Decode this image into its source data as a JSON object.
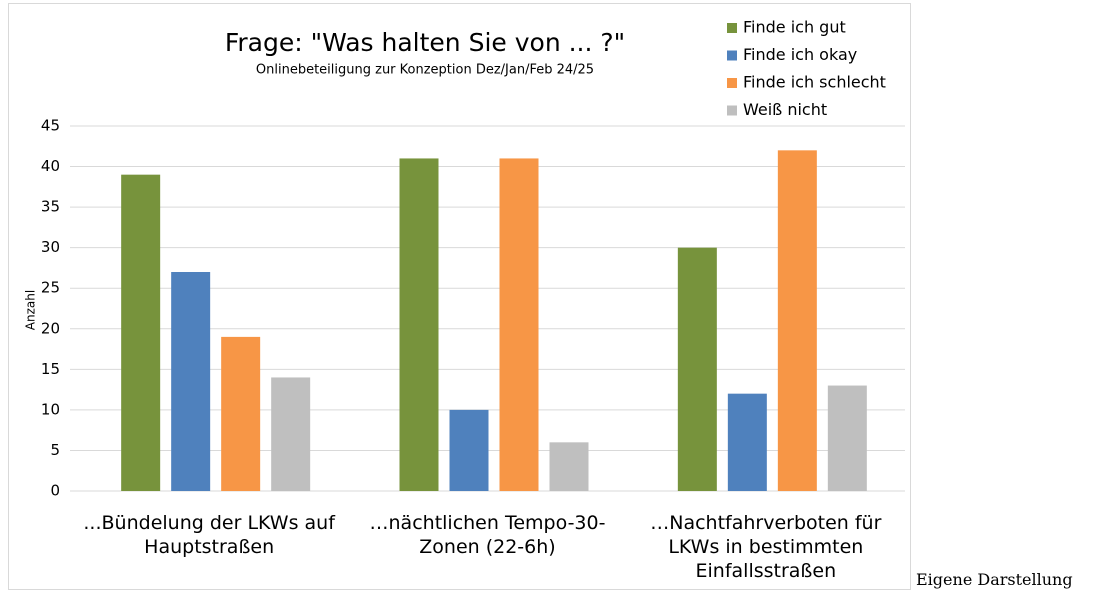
{
  "chart_data": {
    "type": "bar",
    "title": "Frage: \"Was halten Sie von ... ?\"",
    "subtitle": "Onlinebeteiligung zur Konzeption Dez/Jan/Feb 24/25",
    "y_label": "Anzahl",
    "categories": [
      "...Bündelung der LKWs auf Hauptstraßen",
      "…nächtlichen Tempo-30-Zonen  (22-6h)",
      "…Nachtfahrverboten für LKWs in bestimmten Einfallsstraßen"
    ],
    "series": [
      {
        "name": "Finde ich gut",
        "color": "#77933c",
        "values": [
          39,
          41,
          30
        ]
      },
      {
        "name": "Finde ich okay",
        "color": "#4f81bd",
        "values": [
          27,
          10,
          12
        ]
      },
      {
        "name": "Finde ich schlecht",
        "color": "#f79646",
        "values": [
          19,
          41,
          42
        ]
      },
      {
        "name": "Weiß nicht",
        "color": "#bfbfbf",
        "values": [
          14,
          6,
          13
        ]
      }
    ],
    "ylim": [
      0,
      45
    ],
    "yticks": [
      0,
      5,
      10,
      15,
      20,
      25,
      30,
      35,
      40,
      45
    ],
    "grid": true,
    "legend": "top-right",
    "source": "Eigene Darstellung"
  }
}
